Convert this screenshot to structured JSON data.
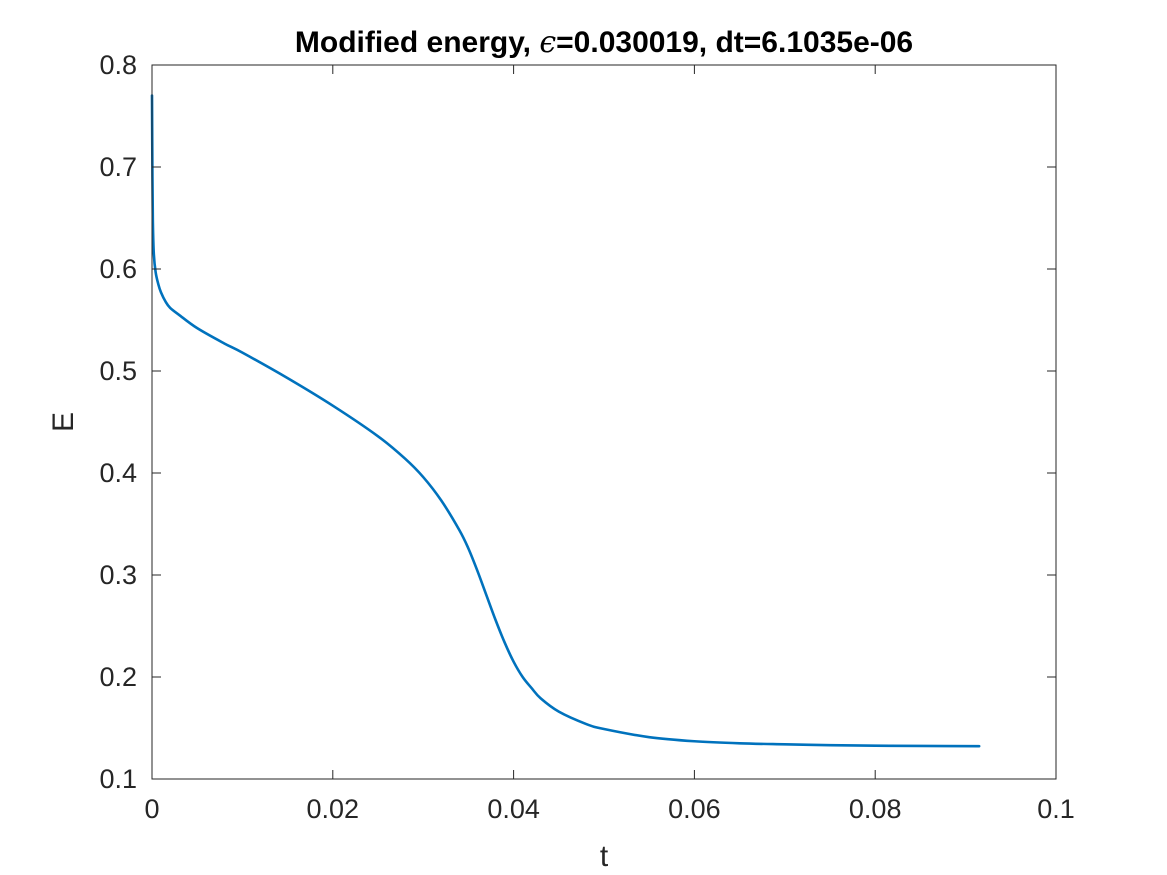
{
  "chart_data": {
    "type": "line",
    "title": {
      "prefix": "Modified energy, ",
      "symbol": "ϵ",
      "suffix": "=0.030019, dt=6.1035e-06"
    },
    "xlabel": "t",
    "ylabel": "E",
    "xlim": [
      0,
      0.1
    ],
    "ylim": [
      0.1,
      0.8
    ],
    "xticks": [
      0,
      0.02,
      0.04,
      0.06,
      0.08,
      0.1
    ],
    "xtick_labels": [
      "0",
      "0.02",
      "0.04",
      "0.06",
      "0.08",
      "0.1"
    ],
    "yticks": [
      0.1,
      0.2,
      0.3,
      0.4,
      0.5,
      0.6,
      0.7,
      0.8
    ],
    "ytick_labels": [
      "0.1",
      "0.2",
      "0.3",
      "0.4",
      "0.5",
      "0.6",
      "0.7",
      "0.8"
    ],
    "grid": false,
    "line_color": "#0072BD",
    "axis_color": "#262626",
    "series": [
      {
        "x": [
          0,
          5e-05,
          0.0001,
          0.0002,
          0.0004,
          0.0007,
          0.001,
          0.0015,
          0.002,
          0.003,
          0.005,
          0.008,
          0.01,
          0.015,
          0.02,
          0.025,
          0.028,
          0.03,
          0.032,
          0.034,
          0.035,
          0.036,
          0.037,
          0.038,
          0.039,
          0.04,
          0.041,
          0.042,
          0.043,
          0.045,
          0.048,
          0.05,
          0.055,
          0.06,
          0.065,
          0.07,
          0.075,
          0.08,
          0.085,
          0.0915
        ],
        "y": [
          0.77,
          0.69,
          0.645,
          0.615,
          0.597,
          0.585,
          0.577,
          0.568,
          0.562,
          0.555,
          0.542,
          0.527,
          0.518,
          0.493,
          0.466,
          0.436,
          0.414,
          0.396,
          0.373,
          0.344,
          0.326,
          0.304,
          0.28,
          0.256,
          0.234,
          0.215,
          0.2,
          0.189,
          0.179,
          0.166,
          0.154,
          0.149,
          0.141,
          0.137,
          0.135,
          0.134,
          0.1332,
          0.1327,
          0.1324,
          0.1322
        ]
      }
    ]
  }
}
